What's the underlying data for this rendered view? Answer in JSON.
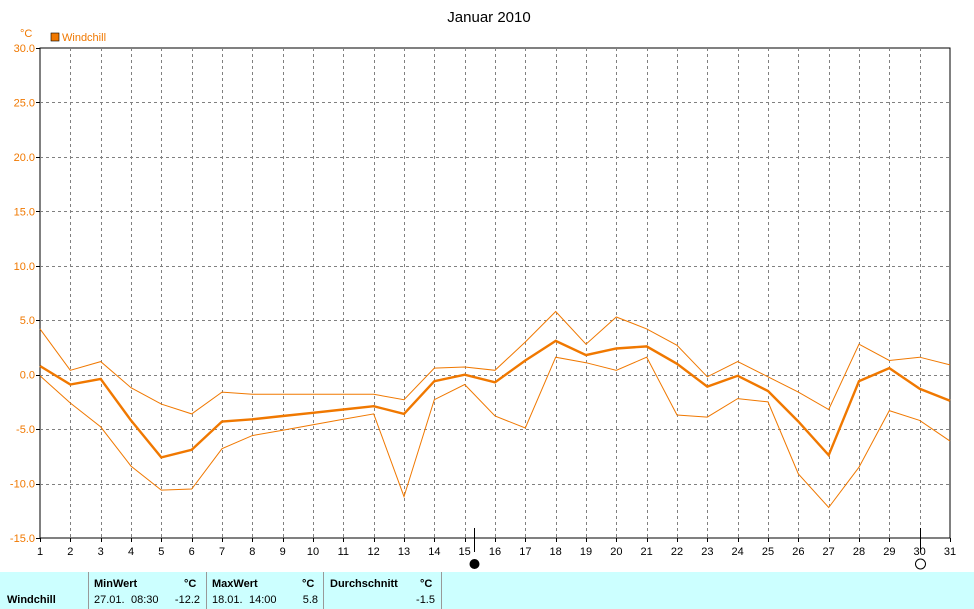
{
  "chart_data": {
    "type": "line",
    "title": "Januar 2010",
    "yunit": "°C",
    "legend": [
      {
        "name": "Windchill",
        "color": "#f07800"
      }
    ],
    "ylim": [
      -15,
      30
    ],
    "yticks": [
      "30.0",
      "25.0",
      "20.0",
      "15.0",
      "10.0",
      "5.0",
      "0.0",
      "-5.0",
      "-10.0",
      "-15.0"
    ],
    "ytick_values": [
      30,
      25,
      20,
      15,
      10,
      5,
      0,
      -5,
      -10,
      -15
    ],
    "x": [
      1,
      2,
      3,
      4,
      5,
      6,
      7,
      8,
      9,
      10,
      11,
      12,
      13,
      14,
      15,
      16,
      17,
      18,
      19,
      20,
      21,
      22,
      23,
      24,
      25,
      26,
      27,
      28,
      29,
      30,
      31
    ],
    "xticks": [
      "1",
      "2",
      "3",
      "4",
      "5",
      "6",
      "7",
      "8",
      "9",
      "10",
      "11",
      "12",
      "13",
      "14",
      "15",
      "16",
      "17",
      "18",
      "19",
      "20",
      "21",
      "22",
      "23",
      "24",
      "25",
      "26",
      "27",
      "28",
      "29",
      "30",
      "31"
    ],
    "grid": true,
    "series": [
      {
        "name": "Windchill",
        "role": "average",
        "color": "#f07800",
        "values": [
          0.8,
          -0.9,
          -0.4,
          -4.2,
          -7.6,
          -6.9,
          -4.3,
          -4.1,
          -3.8,
          -3.5,
          -3.2,
          -2.9,
          -3.6,
          -0.6,
          0.0,
          -0.7,
          1.3,
          3.1,
          1.8,
          2.4,
          2.6,
          1.0,
          -1.1,
          -0.1,
          -1.5,
          -4.3,
          -7.4,
          -0.6,
          0.6,
          -1.3,
          -2.4
        ]
      },
      {
        "role": "max",
        "color": "#f07800",
        "values": [
          4.2,
          0.4,
          1.2,
          -1.2,
          -2.7,
          -3.6,
          -1.6,
          -1.8,
          -1.8,
          -1.8,
          -1.8,
          -1.8,
          -2.3,
          0.6,
          0.7,
          0.4,
          3.0,
          5.8,
          2.8,
          5.3,
          4.2,
          2.7,
          -0.2,
          1.2,
          -0.2,
          -1.6,
          -3.2,
          2.8,
          1.3,
          1.6,
          0.9
        ]
      },
      {
        "role": "min",
        "color": "#f07800",
        "values": [
          -0.1,
          -2.6,
          -4.8,
          -8.4,
          -10.6,
          -10.5,
          -6.8,
          -5.6,
          -5.1,
          -4.6,
          -4.1,
          -3.6,
          -11.2,
          -2.3,
          -0.9,
          -3.8,
          -4.9,
          1.6,
          1.1,
          0.4,
          1.6,
          -3.7,
          -3.9,
          -2.2,
          -2.5,
          -9.1,
          -12.2,
          -8.5,
          -3.3,
          -4.2,
          -6.1
        ]
      }
    ],
    "markers": [
      {
        "x": 15.3,
        "symbol": "full-moon"
      },
      {
        "x": 30.0,
        "symbol": "new-moon"
      }
    ]
  },
  "stats": {
    "series_label": "Windchill",
    "min": {
      "header": "MinWert",
      "unit": "°C",
      "date": "27.01.",
      "time": "08:30",
      "value": "-12.2"
    },
    "max": {
      "header": "MaxWert",
      "unit": "°C",
      "date": "18.01.",
      "time": "14:00",
      "value": "5.8"
    },
    "avg": {
      "header": "Durchschnitt",
      "unit": "°C",
      "value": "-1.5"
    }
  }
}
